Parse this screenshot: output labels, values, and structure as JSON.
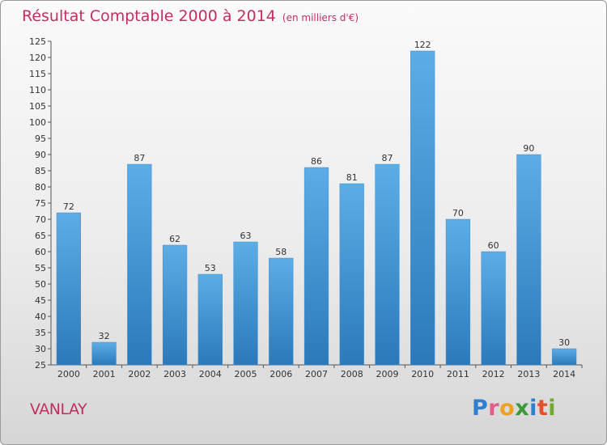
{
  "header": {
    "title": "Résultat Comptable 2000 à 2014",
    "subtitle": "(en milliers d'€)"
  },
  "footer": {
    "commune": "VANLAY",
    "logo_text": "Proxiti",
    "logo_letters": [
      "P",
      "r",
      "o",
      "x",
      "i",
      "t",
      "i"
    ],
    "logo_colors": [
      "#2f7fd0",
      "#e45a8a",
      "#f0a020",
      "#3a9a3a",
      "#2f7fd0",
      "#e4502a",
      "#6fa82f"
    ]
  },
  "colors": {
    "title": "#c0305f",
    "bar_top": "#5cade6",
    "bar_bottom": "#2b79bb",
    "axis": "#555555",
    "grid": "#dddddd"
  },
  "chart_data": {
    "type": "bar",
    "title": "Résultat Comptable 2000 à 2014",
    "subtitle": "(en milliers d'€)",
    "xlabel": "",
    "ylabel": "",
    "categories": [
      "2000",
      "2001",
      "2002",
      "2003",
      "2004",
      "2005",
      "2006",
      "2007",
      "2008",
      "2009",
      "2010",
      "2011",
      "2012",
      "2013",
      "2014"
    ],
    "values": [
      72,
      32,
      87,
      62,
      53,
      63,
      58,
      86,
      81,
      87,
      122,
      70,
      60,
      90,
      30
    ],
    "data_labels": [
      "72",
      "32",
      "87",
      "62",
      "53",
      "63",
      "58",
      "86",
      "81",
      "87",
      "122",
      "70",
      "60",
      "90",
      "30"
    ],
    "ylim": [
      25,
      125
    ],
    "yticks": [
      25,
      30,
      35,
      40,
      45,
      50,
      55,
      60,
      65,
      70,
      75,
      80,
      85,
      90,
      95,
      100,
      105,
      110,
      115,
      120,
      125
    ],
    "grid": false,
    "legend": "none"
  }
}
